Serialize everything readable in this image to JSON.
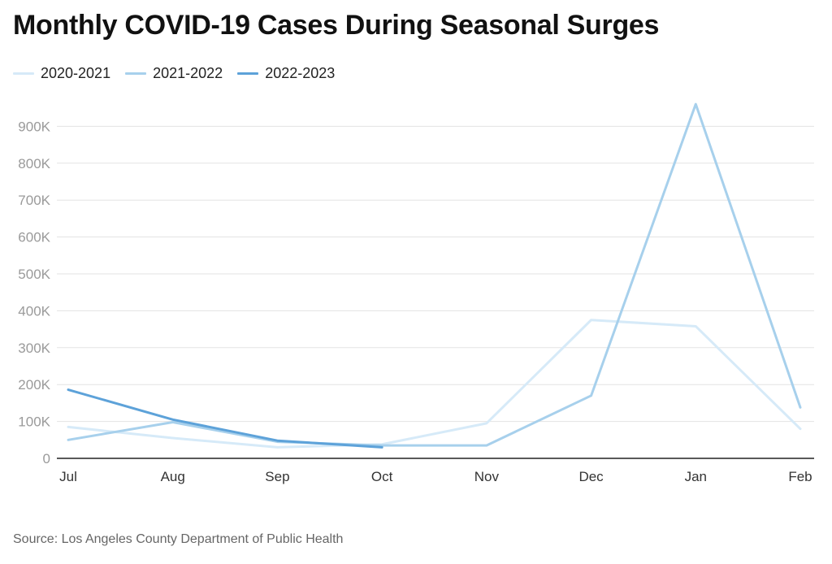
{
  "title": "Monthly COVID-19 Cases During Seasonal Surges",
  "source": "Source: Los Angeles County Department of Public Health",
  "legend_position": "top-left",
  "chart_data": {
    "type": "line",
    "title": "Monthly COVID-19 Cases During Seasonal Surges",
    "xlabel": "",
    "ylabel": "",
    "categories": [
      "Jul",
      "Aug",
      "Sep",
      "Oct",
      "Nov",
      "Dec",
      "Jan",
      "Feb"
    ],
    "ylim": [
      0,
      1000000
    ],
    "yticks": [
      0,
      100000,
      200000,
      300000,
      400000,
      500000,
      600000,
      700000,
      800000,
      900000
    ],
    "ytick_labels": [
      "0",
      "100K",
      "200K",
      "300K",
      "400K",
      "500K",
      "600K",
      "700K",
      "800K",
      "900K"
    ],
    "grid": true,
    "series": [
      {
        "name": "2020-2021",
        "color": "#d6eaf8",
        "values": [
          85000,
          55000,
          30000,
          38000,
          95000,
          375000,
          358000,
          80000
        ]
      },
      {
        "name": "2021-2022",
        "color": "#a7d0ec",
        "values": [
          50000,
          98000,
          45000,
          35000,
          35000,
          170000,
          960000,
          138000
        ]
      },
      {
        "name": "2022-2023",
        "color": "#5da2d9",
        "values": [
          186000,
          105000,
          48000,
          30000,
          null,
          null,
          null,
          null
        ]
      }
    ]
  }
}
